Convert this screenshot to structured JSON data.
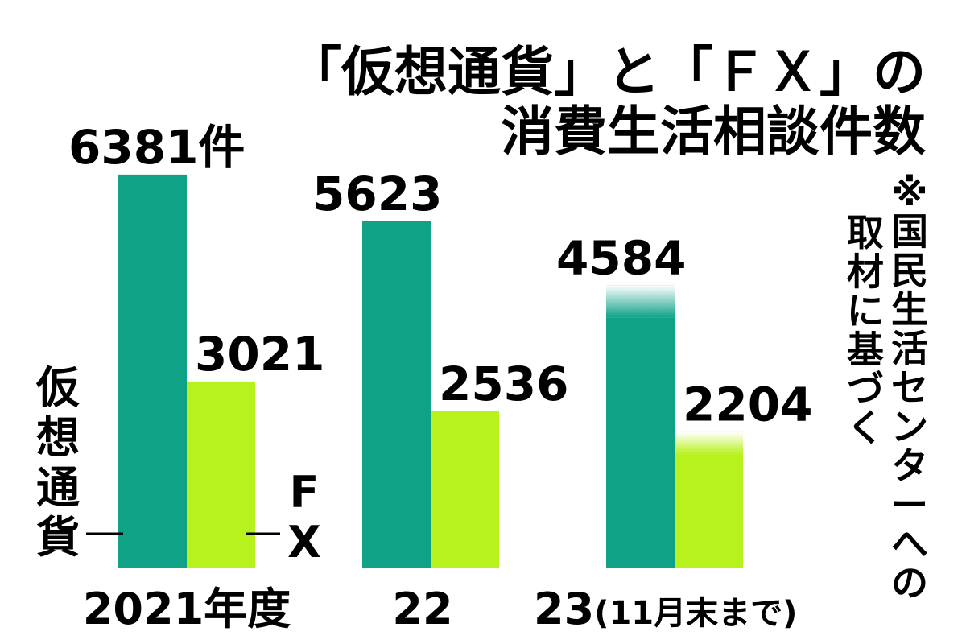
{
  "chart_data": {
    "type": "bar",
    "title_lines": [
      "「仮想通貨」と「ＦＸ」の",
      "消費生活相談件数"
    ],
    "categories": [
      "2021年度",
      "22",
      "23"
    ],
    "category_suffixes": [
      "",
      "",
      "(11月末まで)"
    ],
    "value_unit": "件",
    "series": [
      {
        "name": "仮想通貨",
        "color": "#0fa287",
        "values": [
          6381,
          5623,
          4584
        ]
      },
      {
        "name": "FX",
        "color": "#b7f21c",
        "values": [
          3021,
          2536,
          2204
        ]
      }
    ],
    "ylim": [
      0,
      7000
    ],
    "grid": false,
    "faded_top_category_index": 2,
    "note_col1": "※国民生活センターへの",
    "note_col2": "取材に基づく"
  }
}
